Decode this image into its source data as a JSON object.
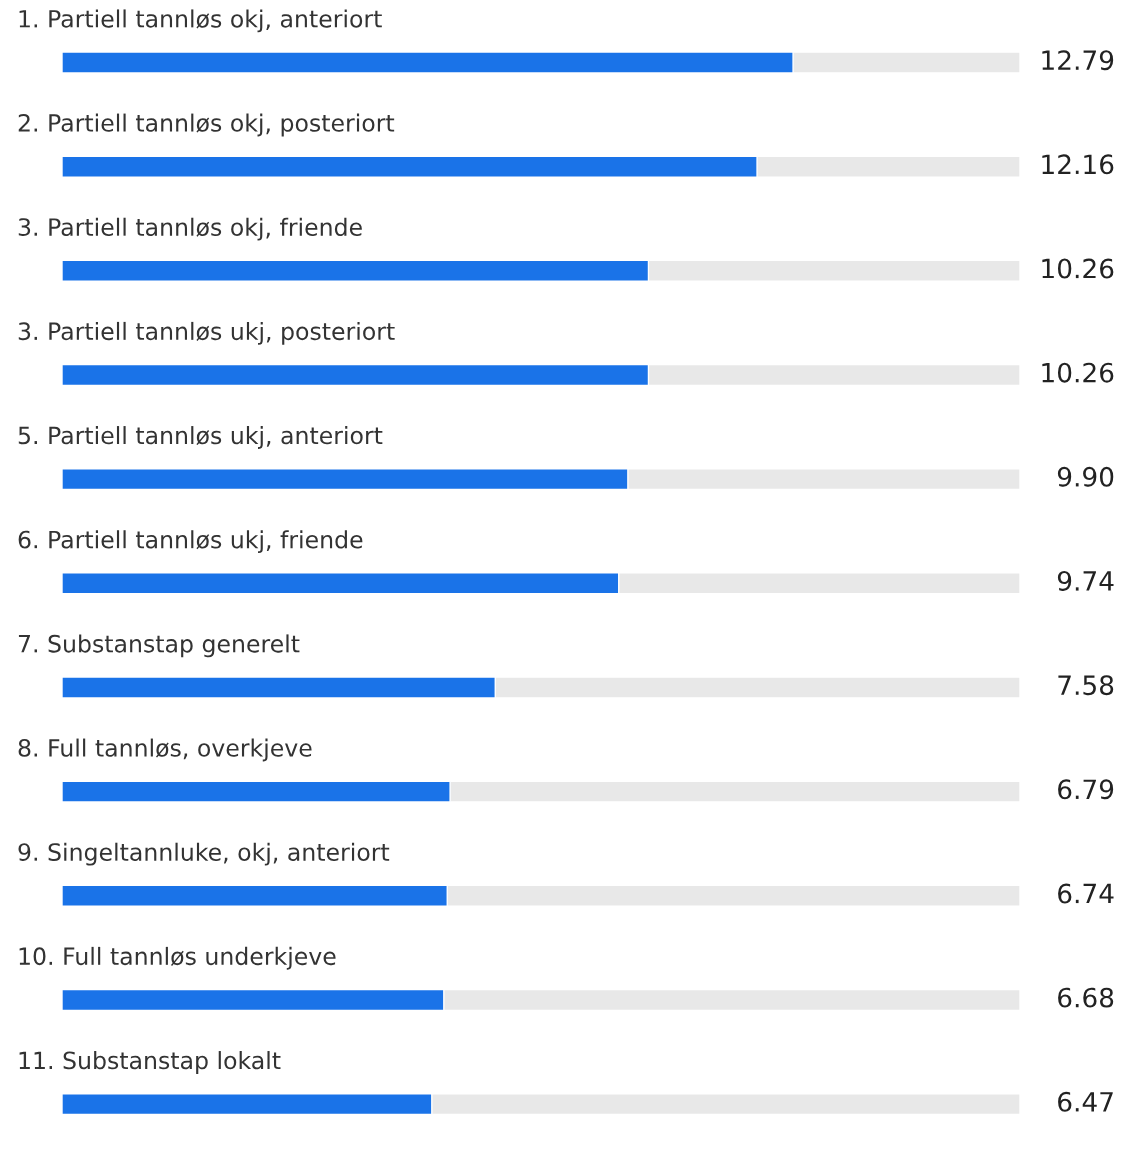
{
  "chart_data": {
    "type": "bar",
    "orientation": "horizontal",
    "categories": [
      "1. Partiell tannløs okj, anteriort",
      "2. Partiell tannløs okj, posteriort",
      "3. Partiell tannløs okj, friende",
      "3. Partiell tannløs ukj, posteriort",
      "5. Partiell tannløs ukj, anteriort",
      "6. Partiell tannløs ukj, friende",
      "7. Substanstap generelt",
      "8. Full tannløs, overkjeve",
      "9. Singeltannluke, okj, anteriort",
      "10. Full tannløs underkjeve",
      "11. Substanstap lokalt"
    ],
    "values": [
      12.79,
      12.16,
      10.26,
      10.26,
      9.9,
      9.74,
      7.58,
      6.79,
      6.74,
      6.68,
      6.47
    ],
    "value_labels": [
      "12.79",
      "12.16",
      "10.26",
      "10.26",
      "9.90",
      "9.74",
      "7.58",
      "6.79",
      "6.74",
      "6.68",
      "6.47"
    ],
    "color": "#1a73e8",
    "xlim": [
      0,
      16.76
    ]
  }
}
